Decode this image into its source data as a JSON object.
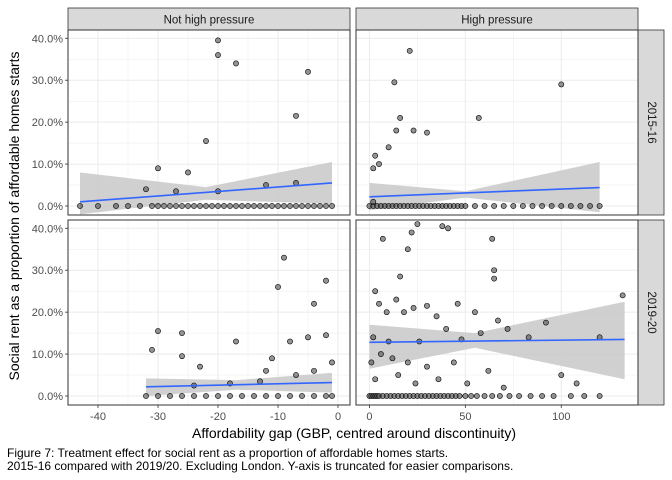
{
  "chart_data": {
    "type": "scatter",
    "xlabel": "Affordability gap (GBP, centred around discontinuity)",
    "ylabel": "Social rent as a proportion of affordable homes starts",
    "column_facets": [
      "Not high pressure",
      "High pressure"
    ],
    "row_facets": [
      "2015-16",
      "2019-20"
    ],
    "y_ticks": [
      "0.0%",
      "10.0%",
      "20.0%",
      "30.0%",
      "40.0%"
    ],
    "ylim": [
      0,
      0.415
    ],
    "panels": [
      {
        "column": "Not high pressure",
        "row": "2015-16",
        "x_ticks": [
          -40,
          -30,
          -20,
          -10,
          0
        ],
        "xlim": [
          -45,
          2
        ],
        "points": [
          [
            -20,
            0.395
          ],
          [
            -20,
            0.36
          ],
          [
            -17,
            0.34
          ],
          [
            -5,
            0.32
          ],
          [
            -7,
            0.215
          ],
          [
            -22,
            0.155
          ],
          [
            -30,
            0.09
          ],
          [
            -25,
            0.08
          ],
          [
            -32,
            0.04
          ],
          [
            -27,
            0.035
          ],
          [
            -20,
            0.035
          ],
          [
            -7,
            0.055
          ],
          [
            -12,
            0.05
          ]
        ],
        "zero_points_x": [
          -43,
          -40,
          -37,
          -35,
          -33,
          -31,
          -30,
          -29,
          -28,
          -27,
          -26,
          -25,
          -24,
          -23,
          -22,
          -21,
          -20,
          -19,
          -18,
          -17,
          -16,
          -15,
          -14,
          -13,
          -12,
          -11,
          -10,
          -9,
          -8,
          -7,
          -6,
          -5,
          -4,
          -3,
          -2,
          -1
        ],
        "fit": {
          "x": [
            -43,
            -1
          ],
          "y": [
            0.01,
            0.055
          ]
        },
        "band": {
          "x": [
            -43,
            -22,
            -1
          ],
          "lo": [
            -0.02,
            0.015,
            0.005
          ],
          "hi": [
            0.08,
            0.045,
            0.105
          ]
        }
      },
      {
        "column": "High pressure",
        "row": "2015-16",
        "x_ticks": [
          0,
          50,
          100
        ],
        "xlim": [
          -7,
          140
        ],
        "points": [
          [
            21,
            0.37
          ],
          [
            13,
            0.295
          ],
          [
            100,
            0.29
          ],
          [
            16,
            0.21
          ],
          [
            57,
            0.21
          ],
          [
            14,
            0.18
          ],
          [
            3,
            0.12
          ],
          [
            23,
            0.18
          ],
          [
            30,
            0.175
          ],
          [
            5,
            0.1
          ],
          [
            10,
            0.14
          ],
          [
            2,
            0.09
          ],
          [
            2,
            0.01
          ]
        ],
        "zero_points_x": [
          0,
          2,
          4,
          6,
          8,
          10,
          12,
          14,
          16,
          18,
          20,
          22,
          24,
          26,
          28,
          30,
          32,
          34,
          36,
          38,
          40,
          42,
          44,
          46,
          48,
          50,
          55,
          60,
          65,
          70,
          75,
          80,
          85,
          90,
          95,
          100,
          105,
          110,
          115,
          120
        ],
        "fit": {
          "x": [
            0,
            120
          ],
          "y": [
            0.022,
            0.044
          ]
        },
        "band": {
          "x": [
            0,
            50,
            120
          ],
          "lo": [
            -0.01,
            0.02,
            -0.015
          ],
          "hi": [
            0.055,
            0.035,
            0.105
          ]
        }
      },
      {
        "column": "Not high pressure",
        "row": "2019-20",
        "x_ticks": [
          -40,
          -30,
          -20,
          -10,
          0
        ],
        "xlim": [
          -45,
          2
        ],
        "points": [
          [
            -9,
            0.33
          ],
          [
            -2,
            0.275
          ],
          [
            -10,
            0.26
          ],
          [
            -4,
            0.22
          ],
          [
            -30,
            0.155
          ],
          [
            -26,
            0.15
          ],
          [
            -2,
            0.145
          ],
          [
            -17,
            0.13
          ],
          [
            -8,
            0.13
          ],
          [
            -31,
            0.11
          ],
          [
            -5,
            0.14
          ],
          [
            -26,
            0.095
          ],
          [
            -11,
            0.09
          ],
          [
            -23,
            0.07
          ],
          [
            -1,
            0.08
          ],
          [
            -12,
            0.06
          ],
          [
            -4,
            0.06
          ],
          [
            -7,
            0.05
          ],
          [
            -13,
            0.035
          ],
          [
            -24,
            0.025
          ],
          [
            -18,
            0.03
          ]
        ],
        "zero_points_x": [
          -32,
          -30,
          -28,
          -26,
          -24,
          -22,
          -20,
          -18,
          -16,
          -14,
          -12,
          -10,
          -8,
          -6,
          -4,
          -2,
          -1
        ],
        "fit": {
          "x": [
            -32,
            -1
          ],
          "y": [
            0.022,
            0.032
          ]
        },
        "band": {
          "x": [
            -32,
            -17,
            -1
          ],
          "lo": [
            0,
            0.015,
            0.008
          ],
          "hi": [
            0.042,
            0.038,
            0.055
          ]
        }
      },
      {
        "column": "High pressure",
        "row": "2019-20",
        "x_ticks": [
          0,
          50,
          100
        ],
        "xlim": [
          -7,
          140
        ],
        "points": [
          [
            25,
            0.41
          ],
          [
            38,
            0.405
          ],
          [
            41,
            0.4
          ],
          [
            22,
            0.39
          ],
          [
            7,
            0.375
          ],
          [
            64,
            0.375
          ],
          [
            132,
            0.24
          ],
          [
            65,
            0.3
          ],
          [
            65,
            0.28
          ],
          [
            20,
            0.35
          ],
          [
            16,
            0.285
          ],
          [
            3,
            0.25
          ],
          [
            5,
            0.22
          ],
          [
            9,
            0.2
          ],
          [
            14,
            0.23
          ],
          [
            18,
            0.2
          ],
          [
            23,
            0.21
          ],
          [
            30,
            0.215
          ],
          [
            46,
            0.22
          ],
          [
            35,
            0.19
          ],
          [
            55,
            0.2
          ],
          [
            67,
            0.18
          ],
          [
            92,
            0.175
          ],
          [
            40,
            0.16
          ],
          [
            58,
            0.15
          ],
          [
            72,
            0.16
          ],
          [
            2,
            0.14
          ],
          [
            10,
            0.13
          ],
          [
            26,
            0.13
          ],
          [
            48,
            0.135
          ],
          [
            83,
            0.14
          ],
          [
            120,
            0.14
          ],
          [
            1,
            0.08
          ],
          [
            6,
            0.1
          ],
          [
            12,
            0.09
          ],
          [
            20,
            0.08
          ],
          [
            30,
            0.07
          ],
          [
            44,
            0.08
          ],
          [
            62,
            0.06
          ],
          [
            100,
            0.05
          ],
          [
            3,
            0.04
          ],
          [
            15,
            0.05
          ],
          [
            24,
            0.03
          ],
          [
            36,
            0.04
          ],
          [
            51,
            0.03
          ],
          [
            70,
            0.02
          ],
          [
            108,
            0.03
          ]
        ],
        "zero_points_x": [
          0,
          1,
          2,
          3,
          4,
          5,
          7,
          9,
          11,
          13,
          15,
          17,
          19,
          21,
          23,
          25,
          27,
          29,
          31,
          33,
          35,
          37,
          39,
          41,
          43,
          45,
          47,
          50,
          53,
          56,
          60,
          64,
          68,
          73,
          78,
          84,
          90,
          96,
          105,
          112,
          120
        ],
        "fit": {
          "x": [
            0,
            133
          ],
          "y": [
            0.128,
            0.135
          ]
        },
        "band": {
          "x": [
            0,
            55,
            133
          ],
          "lo": [
            0.065,
            0.115,
            0.04
          ],
          "hi": [
            0.17,
            0.15,
            0.225
          ]
        }
      }
    ]
  },
  "caption": {
    "line1": "Figure 7: Treatment effect for social rent as a proportion of affordable homes starts.",
    "line2": "2015-16 compared with 2019/20. Excluding London. Y-axis is truncated for easier comparisons."
  },
  "colors": {
    "point": "#4d4d4d",
    "fit": "#3366ff",
    "band": "#c8c8c8",
    "strip": "#d9d9d9",
    "grid": "#ebebeb"
  }
}
